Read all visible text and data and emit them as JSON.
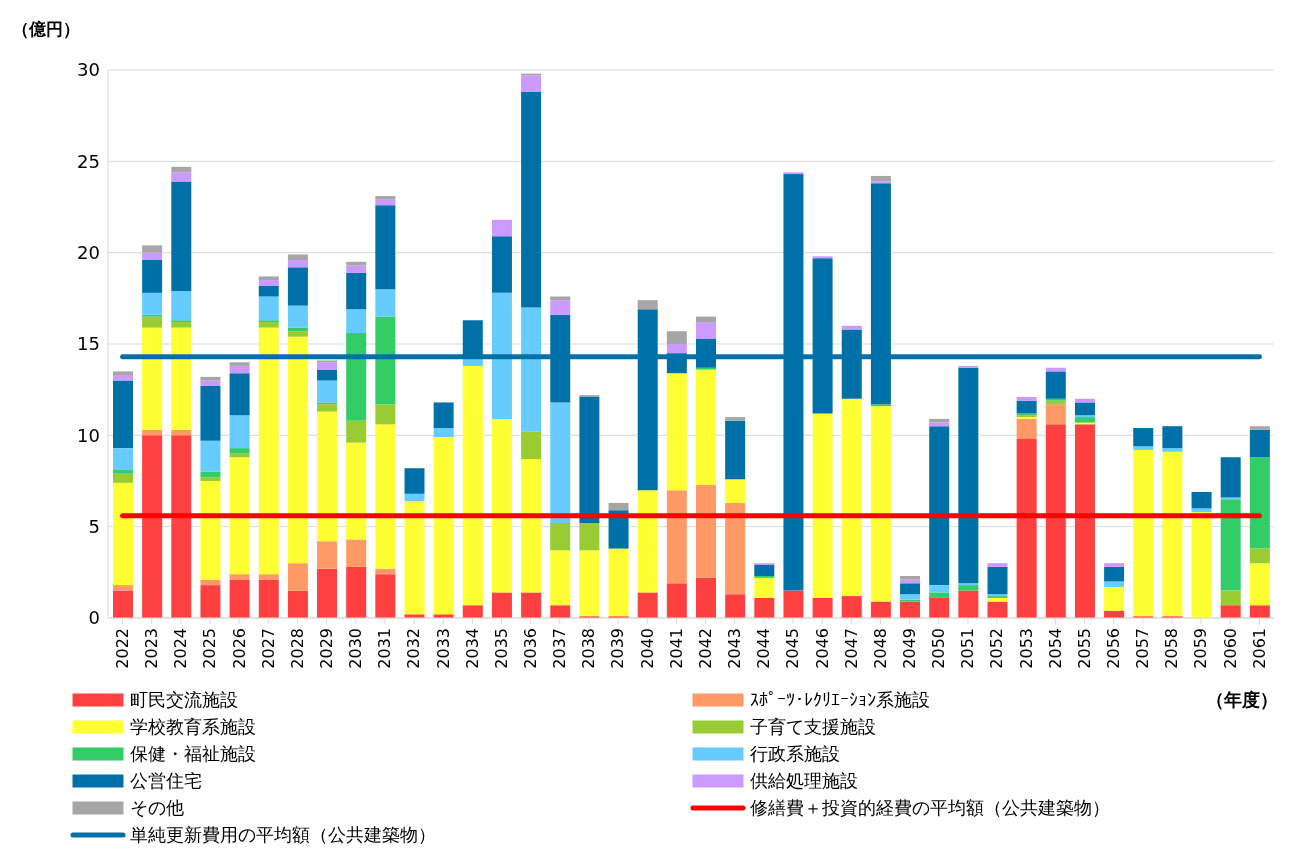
{
  "chart_data": {
    "type": "bar",
    "stacked": true,
    "ylabel": "（億円）",
    "xlabel": "（年度）",
    "ylim": [
      0,
      30
    ],
    "yticks": [
      0,
      5,
      10,
      15,
      20,
      25,
      30
    ],
    "grid": "y",
    "legend": "bottom",
    "categories": [
      "2022",
      "2023",
      "2024",
      "2025",
      "2026",
      "2027",
      "2028",
      "2029",
      "2030",
      "2031",
      "2032",
      "2033",
      "2034",
      "2035",
      "2036",
      "2037",
      "2038",
      "2039",
      "2040",
      "2041",
      "2042",
      "2043",
      "2044",
      "2045",
      "2046",
      "2047",
      "2048",
      "2049",
      "2050",
      "2051",
      "2052",
      "2053",
      "2054",
      "2055",
      "2056",
      "2057",
      "2058",
      "2059",
      "2060",
      "2061"
    ],
    "series": [
      {
        "name": "町民交流施設",
        "color": "#ff4040",
        "values": [
          1.5,
          10.0,
          10.0,
          1.8,
          2.1,
          2.1,
          1.5,
          2.7,
          2.8,
          2.4,
          0.2,
          0.2,
          0.7,
          1.4,
          1.4,
          0.7,
          0.1,
          0.1,
          1.4,
          1.9,
          2.2,
          1.3,
          1.1,
          1.5,
          1.1,
          1.2,
          0.9,
          0.9,
          1.1,
          1.5,
          0.9,
          9.8,
          10.6,
          10.6,
          0.4,
          0.1,
          0.1,
          null,
          0.7,
          0.7
        ]
      },
      {
        "name": "ｽﾎﾟｰﾂ･ﾚｸﾘｴｰｼｮﾝ系施設",
        "color": "#ff9966",
        "values": [
          0.3,
          0.3,
          0.3,
          0.3,
          0.3,
          0.3,
          1.5,
          1.5,
          1.5,
          0.3,
          null,
          null,
          null,
          null,
          null,
          null,
          null,
          null,
          null,
          5.1,
          5.1,
          5.0,
          null,
          null,
          null,
          null,
          null,
          null,
          null,
          null,
          null,
          1.1,
          1.1,
          null,
          null,
          null,
          null,
          null,
          null,
          null
        ]
      },
      {
        "name": "学校教育系施設",
        "color": "#ffff33",
        "values": [
          5.6,
          5.6,
          5.6,
          5.4,
          6.4,
          13.5,
          12.4,
          7.1,
          5.3,
          7.9,
          6.2,
          9.7,
          13.1,
          9.5,
          7.3,
          3.0,
          3.6,
          3.7,
          5.6,
          6.4,
          6.3,
          1.3,
          1.1,
          null,
          10.1,
          10.8,
          10.7,
          null,
          null,
          null,
          0.2,
          0.1,
          null,
          0.1,
          1.3,
          9.1,
          9.0,
          5.8,
          null,
          2.3
        ]
      },
      {
        "name": "子育て支援施設",
        "color": "#99cc33",
        "values": [
          0.5,
          0.6,
          0.3,
          0.2,
          0.2,
          0.3,
          0.3,
          0.4,
          1.2,
          1.1,
          null,
          null,
          null,
          null,
          1.5,
          1.5,
          1.5,
          null,
          null,
          null,
          null,
          null,
          null,
          null,
          null,
          null,
          null,
          null,
          null,
          null,
          null,
          0.1,
          0.2,
          null,
          null,
          null,
          null,
          null,
          0.8,
          0.8
        ]
      },
      {
        "name": "保健・福祉施設",
        "color": "#33cc66",
        "values": [
          0.2,
          0.1,
          0.1,
          0.3,
          0.3,
          0.1,
          0.2,
          0.1,
          4.8,
          4.8,
          null,
          null,
          null,
          null,
          null,
          null,
          null,
          null,
          null,
          null,
          0.1,
          null,
          0.1,
          null,
          null,
          null,
          0.1,
          0.1,
          0.3,
          0.3,
          0.1,
          0.1,
          0.1,
          0.3,
          null,
          null,
          null,
          null,
          5.0,
          5.0
        ]
      },
      {
        "name": "行政系施設",
        "color": "#66ccff",
        "values": [
          1.2,
          1.2,
          1.6,
          1.7,
          1.8,
          1.3,
          1.2,
          1.2,
          1.3,
          1.5,
          0.4,
          0.5,
          0.5,
          6.9,
          6.8,
          6.6,
          null,
          null,
          null,
          null,
          null,
          null,
          null,
          null,
          null,
          null,
          null,
          0.3,
          0.4,
          0.1,
          0.1,
          null,
          null,
          0.1,
          0.3,
          0.2,
          0.2,
          0.2,
          0.1,
          null
        ]
      },
      {
        "name": "公営住宅",
        "color": "#0070a8",
        "values": [
          3.7,
          1.8,
          6.0,
          3.0,
          2.3,
          0.6,
          2.1,
          0.6,
          2.0,
          4.6,
          1.4,
          1.4,
          2.0,
          3.1,
          11.8,
          4.8,
          6.9,
          2.1,
          9.9,
          1.1,
          1.6,
          3.2,
          0.6,
          22.8,
          8.5,
          3.8,
          12.1,
          0.6,
          8.7,
          11.8,
          1.5,
          0.7,
          1.5,
          0.7,
          0.8,
          1.0,
          1.2,
          0.9,
          2.2,
          1.5
        ]
      },
      {
        "name": "供給処理施設",
        "color": "#cc99ff",
        "values": [
          0.3,
          0.4,
          0.5,
          0.3,
          0.4,
          0.3,
          0.4,
          0.4,
          0.4,
          0.3,
          null,
          null,
          null,
          0.9,
          0.9,
          0.8,
          null,
          null,
          null,
          0.5,
          0.9,
          null,
          0.1,
          0.1,
          0.1,
          0.2,
          0.1,
          0.2,
          0.2,
          0.1,
          0.2,
          0.2,
          0.2,
          0.2,
          0.2,
          null,
          null,
          null,
          null,
          null
        ]
      },
      {
        "name": "その他",
        "color": "#a6a6a6",
        "values": [
          0.2,
          0.4,
          0.3,
          0.2,
          0.2,
          0.2,
          0.3,
          0.1,
          0.2,
          0.2,
          null,
          null,
          null,
          null,
          0.1,
          0.2,
          0.1,
          0.4,
          0.5,
          0.7,
          0.3,
          0.2,
          null,
          null,
          null,
          null,
          0.3,
          0.2,
          0.2,
          null,
          null,
          null,
          null,
          null,
          null,
          null,
          null,
          null,
          null,
          0.2
        ]
      },
      {
        "name": "修繕費＋投資的経費の平均額（公共建築物）",
        "type": "line",
        "color": "#ff0000",
        "values": [
          5.6,
          5.6,
          5.6,
          5.6,
          5.6,
          5.6,
          5.6,
          5.6,
          5.6,
          5.6,
          5.6,
          5.6,
          5.6,
          5.6,
          5.6,
          5.6,
          5.6,
          5.6,
          5.6,
          5.6,
          5.6,
          5.6,
          5.6,
          5.6,
          5.6,
          5.6,
          5.6,
          5.6,
          5.6,
          5.6,
          5.6,
          5.6,
          5.6,
          5.6,
          5.6,
          5.6,
          5.6,
          5.6,
          5.6,
          5.6
        ]
      },
      {
        "name": "単純更新費用の平均額（公共建築物）",
        "type": "line",
        "color": "#0070a8",
        "values": [
          14.3,
          14.3,
          14.3,
          14.3,
          14.3,
          14.3,
          14.3,
          14.3,
          14.3,
          14.3,
          14.3,
          14.3,
          14.3,
          14.3,
          14.3,
          14.3,
          14.3,
          14.3,
          14.3,
          14.3,
          14.3,
          14.3,
          14.3,
          14.3,
          14.3,
          14.3,
          14.3,
          14.3,
          14.3,
          14.3,
          14.3,
          14.3,
          14.3,
          14.3,
          14.3,
          14.3,
          14.3,
          14.3,
          14.3,
          14.3
        ]
      }
    ]
  }
}
